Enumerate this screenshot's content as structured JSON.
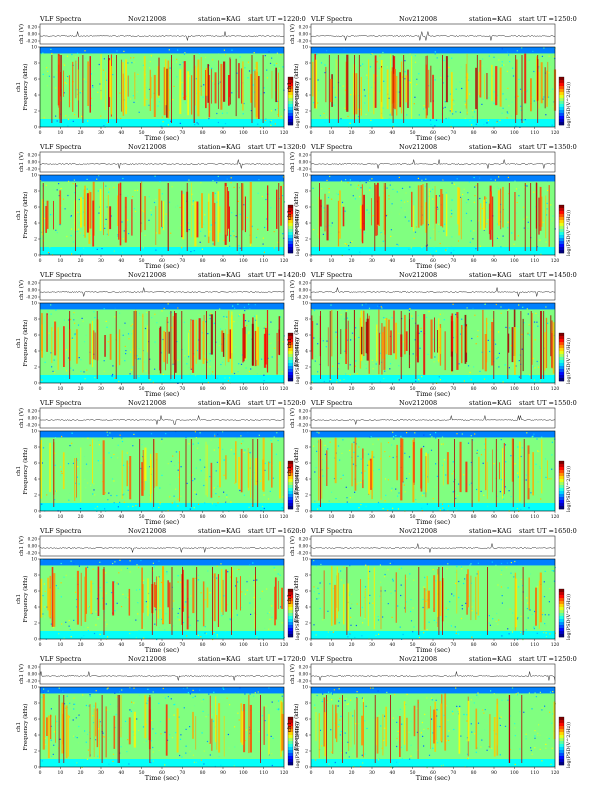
{
  "figure": {
    "label_title": "VLF Spectra",
    "label_station": "station=KAG",
    "label_start_prefix": "start  UT  ="
  },
  "chart_data": [
    {
      "type": "heatmap",
      "title": "VLF Spectra",
      "date": "Nov212008",
      "station": "station=KAG",
      "start_ut": "1220:0",
      "top_ylabel": "ch1 (V)",
      "top_yticks": [
        "0.20",
        "0.00",
        "-0.20"
      ],
      "ylabel": "ch1\nFrequency (kHz)",
      "yticks": [
        "0",
        "2",
        "4",
        "6",
        "8",
        "10"
      ],
      "ylim": [
        0,
        10
      ],
      "xlabel": "Time (sec)",
      "xticks": [
        "0",
        "10",
        "20",
        "30",
        "40",
        "50",
        "60",
        "70",
        "80",
        "90",
        "100",
        "110",
        "120"
      ],
      "xlim": [
        0,
        120
      ],
      "colorbar_label": "log(PSD(V^2/Hz))",
      "colormap": "jet",
      "intensity": 0.95
    },
    {
      "type": "heatmap",
      "title": "VLF Spectra",
      "date": "Nov212008",
      "station": "station=KAG",
      "start_ut": "1250:0",
      "top_ylabel": "ch1 (V)",
      "top_yticks": [
        "0.20",
        "0.00",
        "-0.20"
      ],
      "ylabel": "ch1\nFrequency (kHz)",
      "yticks": [
        "0",
        "2",
        "4",
        "6",
        "8",
        "10"
      ],
      "ylim": [
        0,
        10
      ],
      "xlabel": "Time (sec)",
      "xticks": [
        "0",
        "10",
        "20",
        "30",
        "40",
        "50",
        "60",
        "70",
        "80",
        "90",
        "100",
        "110",
        "120"
      ],
      "xlim": [
        0,
        120
      ],
      "colorbar_label": "log(PSD(V^2/Hz))",
      "colormap": "jet",
      "intensity": 0.9
    },
    {
      "type": "heatmap",
      "title": "VLF Spectra",
      "date": "Nov212008",
      "station": "station=KAG",
      "start_ut": "1320:0",
      "top_ylabel": "ch1 (V)",
      "top_yticks": [
        "0.20",
        "0.00",
        "-0.20"
      ],
      "ylabel": "ch1\nFrequency (kHz)",
      "yticks": [
        "0",
        "2",
        "4",
        "6",
        "8",
        "10"
      ],
      "ylim": [
        0,
        10
      ],
      "xlabel": "Time (sec)",
      "xticks": [
        "0",
        "10",
        "20",
        "30",
        "40",
        "50",
        "60",
        "70",
        "80",
        "90",
        "100",
        "110",
        "120"
      ],
      "xlim": [
        0,
        120
      ],
      "colorbar_label": "log(PSD(V^2/Hz))",
      "colormap": "jet",
      "intensity": 0.75
    },
    {
      "type": "heatmap",
      "title": "VLF Spectra",
      "date": "Nov212008",
      "station": "station=KAG",
      "start_ut": "1350:0",
      "top_ylabel": "ch1 (V)",
      "top_yticks": [
        "0.20",
        "0.00",
        "-0.20"
      ],
      "ylabel": "ch1\nFrequency (kHz)",
      "yticks": [
        "0",
        "2",
        "4",
        "6",
        "8",
        "10"
      ],
      "ylim": [
        0,
        10
      ],
      "xlabel": "Time (sec)",
      "xticks": [
        "0",
        "10",
        "20",
        "30",
        "40",
        "50",
        "60",
        "70",
        "80",
        "90",
        "100",
        "110",
        "120"
      ],
      "xlim": [
        0,
        120
      ],
      "colorbar_label": "log(PSD(V^2/Hz))",
      "colormap": "jet",
      "intensity": 0.75
    },
    {
      "type": "heatmap",
      "title": "VLF Spectra",
      "date": "Nov212008",
      "station": "station=KAG",
      "start_ut": "1420:0",
      "top_ylabel": "ch1 (V)",
      "top_yticks": [
        "0.20",
        "0.00",
        "-0.20"
      ],
      "ylabel": "ch1\nFrequency (kHz)",
      "yticks": [
        "0",
        "2",
        "4",
        "6",
        "8",
        "10"
      ],
      "ylim": [
        0,
        10
      ],
      "xlabel": "Time (sec)",
      "xticks": [
        "0",
        "10",
        "20",
        "30",
        "40",
        "50",
        "60",
        "70",
        "80",
        "90",
        "100",
        "110",
        "120"
      ],
      "xlim": [
        0,
        120
      ],
      "colorbar_label": "log(PSD(V^2/Hz))",
      "colormap": "jet",
      "intensity": 0.95
    },
    {
      "type": "heatmap",
      "title": "VLF Spectra",
      "date": "Nov212008",
      "station": "station=KAG",
      "start_ut": "1450:0",
      "top_ylabel": "ch1 (V)",
      "top_yticks": [
        "0.20",
        "0.00",
        "-0.20"
      ],
      "ylabel": "ch1\nFrequency (kHz)",
      "yticks": [
        "0",
        "2",
        "4",
        "6",
        "8",
        "10"
      ],
      "ylim": [
        0,
        10
      ],
      "xlabel": "Time (sec)",
      "xticks": [
        "0",
        "10",
        "20",
        "30",
        "40",
        "50",
        "60",
        "70",
        "80",
        "90",
        "100",
        "110",
        "120"
      ],
      "xlim": [
        0,
        120
      ],
      "colorbar_label": "log(PSD(V^2/Hz))",
      "colormap": "jet",
      "intensity": 1.0
    },
    {
      "type": "heatmap",
      "title": "VLF Spectra",
      "date": "Nov212008",
      "station": "station=KAG",
      "start_ut": "1520:0",
      "top_ylabel": "ch1 (V)",
      "top_yticks": [
        "0.20",
        "0.00",
        "-0.20"
      ],
      "ylabel": "ch1\nFrequency (kHz)",
      "yticks": [
        "0",
        "2",
        "4",
        "6",
        "8",
        "10"
      ],
      "ylim": [
        0,
        10
      ],
      "xlabel": "Time (sec)",
      "xticks": [
        "0",
        "10",
        "20",
        "30",
        "40",
        "50",
        "60",
        "70",
        "80",
        "90",
        "100",
        "110",
        "120"
      ],
      "xlim": [
        0,
        120
      ],
      "colorbar_label": "log(PSD(V^2/Hz))",
      "colormap": "jet",
      "intensity": 0.55
    },
    {
      "type": "heatmap",
      "title": "VLF Spectra",
      "date": "Nov212008",
      "station": "station=KAG",
      "start_ut": "1550:0",
      "top_ylabel": "ch1 (V)",
      "top_yticks": [
        "0.20",
        "0.00",
        "-0.20"
      ],
      "ylabel": "ch1\nFrequency (kHz)",
      "yticks": [
        "0",
        "2",
        "4",
        "6",
        "8",
        "10"
      ],
      "ylim": [
        0,
        10
      ],
      "xlabel": "Time (sec)",
      "xticks": [
        "0",
        "10",
        "20",
        "30",
        "40",
        "50",
        "60",
        "70",
        "80",
        "90",
        "100",
        "110",
        "120"
      ],
      "xlim": [
        0,
        120
      ],
      "colorbar_label": "log(PSD(V^2/Hz))",
      "colormap": "jet",
      "intensity": 0.6
    },
    {
      "type": "heatmap",
      "title": "VLF Spectra",
      "date": "Nov212008",
      "station": "station=KAG",
      "start_ut": "1620:0",
      "top_ylabel": "ch1 (V)",
      "top_yticks": [
        "0.20",
        "0.00",
        "-0.20"
      ],
      "ylabel": "ch1\nFrequency (kHz)",
      "yticks": [
        "0",
        "2",
        "4",
        "6",
        "8",
        "10"
      ],
      "ylim": [
        0,
        10
      ],
      "xlabel": "Time (sec)",
      "xticks": [
        "0",
        "10",
        "20",
        "30",
        "40",
        "50",
        "60",
        "70",
        "80",
        "90",
        "100",
        "110",
        "120"
      ],
      "xlim": [
        0,
        120
      ],
      "colorbar_label": "log(PSD(V^2/Hz))",
      "colormap": "jet",
      "intensity": 0.7
    },
    {
      "type": "heatmap",
      "title": "VLF Spectra",
      "date": "Nov212008",
      "station": "station=KAG",
      "start_ut": "1650:0",
      "top_ylabel": "ch1 (V)",
      "top_yticks": [
        "0.20",
        "0.00",
        "-0.20"
      ],
      "ylabel": "ch1\nFrequency (kHz)",
      "yticks": [
        "0",
        "2",
        "4",
        "6",
        "8",
        "10"
      ],
      "ylim": [
        0,
        10
      ],
      "xlabel": "Time (sec)",
      "xticks": [
        "0",
        "10",
        "20",
        "30",
        "40",
        "50",
        "60",
        "70",
        "80",
        "90",
        "100",
        "110",
        "120"
      ],
      "xlim": [
        0,
        120
      ],
      "colorbar_label": "log(PSD(V^2/Hz))",
      "colormap": "jet",
      "intensity": 0.5
    },
    {
      "type": "heatmap",
      "title": "VLF Spectra",
      "date": "Nov212008",
      "station": "station=KAG",
      "start_ut": "1720:0",
      "top_ylabel": "ch1 (V)",
      "top_yticks": [
        "0.20",
        "0.00",
        "-0.20"
      ],
      "ylabel": "ch1\nFrequency (kHz)",
      "yticks": [
        "0",
        "2",
        "4",
        "6",
        "8",
        "10"
      ],
      "ylim": [
        0,
        10
      ],
      "xlabel": "Time (sec)",
      "xticks": [
        "0",
        "10",
        "20",
        "30",
        "40",
        "50",
        "60",
        "70",
        "80",
        "90",
        "100",
        "110",
        "120"
      ],
      "xlim": [
        0,
        120
      ],
      "colorbar_label": "log(PSD(V^2/Hz))",
      "colormap": "jet",
      "intensity": 0.6
    },
    {
      "type": "heatmap",
      "title": "VLF Spectra",
      "date": "Nov212008",
      "station": "station=KAG",
      "start_ut": "1250:0",
      "top_ylabel": "ch1 (V)",
      "top_yticks": [
        "0.20",
        "0.00",
        "-0.20"
      ],
      "ylabel": "ch1\nFrequency (kHz)",
      "yticks": [
        "0",
        "2",
        "4",
        "6",
        "8",
        "10"
      ],
      "ylim": [
        0,
        10
      ],
      "xlabel": "Time (sec)",
      "xticks": [
        "0",
        "10",
        "20",
        "30",
        "40",
        "50",
        "60",
        "70",
        "80",
        "90",
        "100",
        "110",
        "120"
      ],
      "xlim": [
        0,
        120
      ],
      "colorbar_label": "log(PSD(V^2/Hz))",
      "colormap": "jet",
      "intensity": 0.55
    }
  ]
}
